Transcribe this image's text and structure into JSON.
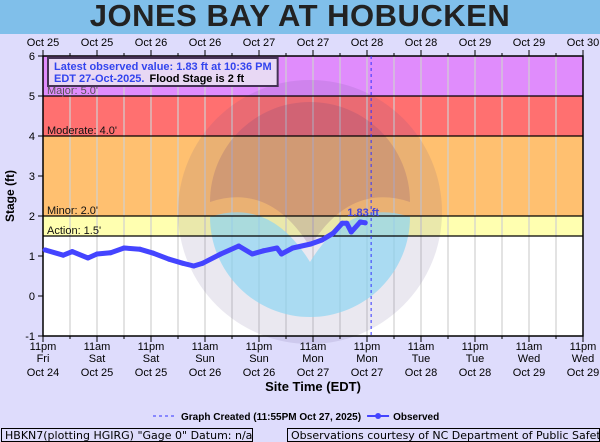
{
  "title": "JONES BAY AT HOBUCKEN",
  "chart_data": {
    "type": "line",
    "title": "JONES BAY AT HOBUCKEN",
    "xlabel": "Site Time (EDT)",
    "ylabel": "Stage (ft)",
    "ylim": [
      -1,
      6
    ],
    "xlim": [
      "2025-10-24 23:00",
      "2025-10-29 23:00"
    ],
    "y_ticks": [
      "-1",
      "0",
      "1",
      "2",
      "3",
      "4",
      "5",
      "6"
    ],
    "x_ticks_bottom": [
      [
        "11pm",
        "Fri",
        "Oct 24"
      ],
      [
        "11am",
        "Sat",
        "Oct 25"
      ],
      [
        "11pm",
        "Sat",
        "Oct 25"
      ],
      [
        "11am",
        "Sun",
        "Oct 26"
      ],
      [
        "11pm",
        "Sun",
        "Oct 26"
      ],
      [
        "11am",
        "Mon",
        "Oct 27"
      ],
      [
        "11pm",
        "Mon",
        "Oct 27"
      ],
      [
        "11am",
        "Tue",
        "Oct 28"
      ],
      [
        "11pm",
        "Tue",
        "Oct 28"
      ],
      [
        "11am",
        "Wed",
        "Oct 29"
      ],
      [
        "11pm",
        "Wed",
        "Oct 29"
      ]
    ],
    "x_ticks_top": [
      "Oct 25",
      "Oct 25",
      "Oct 26",
      "Oct 26",
      "Oct 27",
      "Oct 27",
      "Oct 28",
      "Oct 28",
      "Oct 29",
      "Oct 29",
      "Oct 30"
    ],
    "grid": true,
    "flood_categories": [
      {
        "label": "Major: 5.0'",
        "from": 5.0,
        "to": 6.0,
        "color": "#e08cfc"
      },
      {
        "label": "Moderate: 4.0'",
        "from": 4.0,
        "to": 5.0,
        "color": "#ff7070"
      },
      {
        "label": "Minor: 2.0'",
        "from": 2.0,
        "to": 4.0,
        "color": "#ffc070"
      },
      {
        "label": "Action: 1.5'",
        "from": 1.5,
        "to": 2.0,
        "color": "#ffffb0"
      }
    ],
    "series": [
      {
        "name": "Observed",
        "color": "#4444ff",
        "points": [
          [
            "2025-10-24 23:30",
            1.15
          ],
          [
            "2025-10-25 03:30",
            1.02
          ],
          [
            "2025-10-25 05:30",
            1.11
          ],
          [
            "2025-10-25 09:00",
            0.95
          ],
          [
            "2025-10-25 11:00",
            1.05
          ],
          [
            "2025-10-25 14:00",
            1.08
          ],
          [
            "2025-10-25 17:00",
            1.2
          ],
          [
            "2025-10-25 20:30",
            1.17
          ],
          [
            "2025-10-25 23:30",
            1.07
          ],
          [
            "2025-10-26 03:00",
            0.92
          ],
          [
            "2025-10-26 06:00",
            0.82
          ],
          [
            "2025-10-26 08:30",
            0.75
          ],
          [
            "2025-10-26 10:30",
            0.82
          ],
          [
            "2025-10-26 14:30",
            1.05
          ],
          [
            "2025-10-26 18:30",
            1.25
          ],
          [
            "2025-10-26 21:30",
            1.05
          ],
          [
            "2025-10-27 00:00",
            1.13
          ],
          [
            "2025-10-27 03:00",
            1.2
          ],
          [
            "2025-10-27 04:00",
            1.05
          ],
          [
            "2025-10-27 06:30",
            1.2
          ],
          [
            "2025-10-27 10:30",
            1.3
          ],
          [
            "2025-10-27 13:00",
            1.4
          ],
          [
            "2025-10-27 15:30",
            1.57
          ],
          [
            "2025-10-27 17:30",
            1.82
          ],
          [
            "2025-10-27 18:30",
            1.82
          ],
          [
            "2025-10-27 19:30",
            1.6
          ],
          [
            "2025-10-27 21:30",
            1.85
          ],
          [
            "2025-10-27 22:36",
            1.83
          ]
        ]
      }
    ],
    "last_value_label": "1.83 ft",
    "graph_created_time": "2025-10-27 23:55",
    "annotation_line1": "Latest observed value: 1.83 ft at 10:36 PM",
    "annotation_line2a": "EDT 27-Oct-2025.",
    "annotation_line2b": "Flood Stage is 2 ft",
    "legend": {
      "graph_created": "Graph Created (11:55PM Oct 27, 2025)",
      "observed": "Observed",
      "placement": "bottom"
    }
  },
  "watermark": {
    "text": "NATIONAL OCEANIC AND ATMOSPHERIC ADMINISTRATION",
    "text_bottom": "U.S. DEPARTMENT OF COMMERCE",
    "logo": "NOAA"
  },
  "footer": {
    "left": "HBKN7(plotting HGIRG) \"Gage 0\" Datum: n/a",
    "right": "Observations courtesy of NC Department of Public Safety"
  }
}
